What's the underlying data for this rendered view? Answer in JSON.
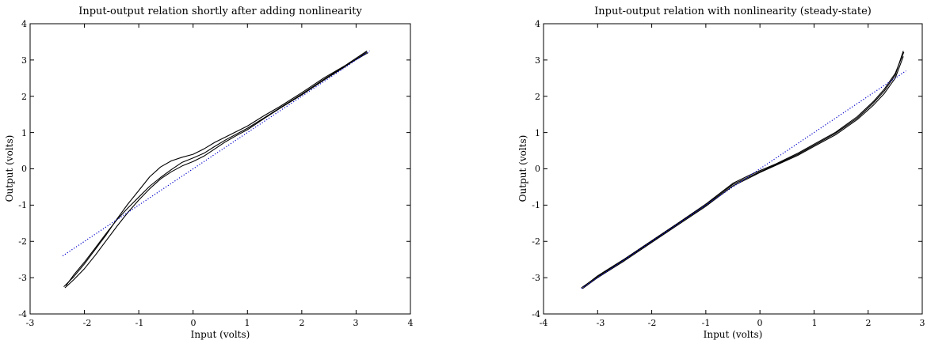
{
  "chart_data": [
    {
      "type": "line",
      "title": "Input-output relation shortly after adding nonlinearity",
      "xlabel": "Input (volts)",
      "ylabel": "Output (volts)",
      "xlim": [
        -3,
        4
      ],
      "ylim": [
        -4,
        4
      ],
      "xticks": [
        "-3",
        "-2",
        "-1",
        "0",
        "1",
        "2",
        "3",
        "4"
      ],
      "yticks": [
        "-4",
        "-3",
        "-2",
        "-1",
        "0",
        "1",
        "2",
        "3",
        "4"
      ],
      "grid": false,
      "series": [
        {
          "style": "solid",
          "color": "#000000",
          "x": [
            -2.38,
            -2.2,
            -2.0,
            -1.8,
            -1.6,
            -1.4,
            -1.2,
            -1.0,
            -0.8,
            -0.6,
            -0.4,
            -0.2,
            0.0,
            0.2,
            0.4,
            0.6,
            0.8,
            1.0,
            1.3,
            1.6,
            2.0,
            2.4,
            2.8,
            3.2
          ],
          "y": [
            -3.25,
            -2.98,
            -2.62,
            -2.22,
            -1.82,
            -1.38,
            -0.97,
            -0.6,
            -0.22,
            0.05,
            0.22,
            0.32,
            0.4,
            0.55,
            0.73,
            0.88,
            1.03,
            1.18,
            1.46,
            1.72,
            2.1,
            2.5,
            2.85,
            3.25
          ]
        },
        {
          "style": "solid",
          "color": "#000000",
          "x": [
            -2.36,
            -2.2,
            -2.0,
            -1.8,
            -1.6,
            -1.4,
            -1.2,
            -1.0,
            -0.8,
            -0.6,
            -0.4,
            -0.2,
            0.0,
            0.2,
            0.4,
            0.6,
            0.8,
            1.0,
            1.3,
            1.6,
            2.0,
            2.4,
            2.8,
            3.2
          ],
          "y": [
            -3.28,
            -3.06,
            -2.75,
            -2.38,
            -1.98,
            -1.58,
            -1.2,
            -0.86,
            -0.55,
            -0.28,
            -0.08,
            0.08,
            0.2,
            0.35,
            0.55,
            0.75,
            0.92,
            1.08,
            1.38,
            1.67,
            2.04,
            2.44,
            2.82,
            3.22
          ]
        },
        {
          "style": "solid",
          "color": "#000000",
          "x": [
            -2.34,
            -2.2,
            -2.0,
            -1.8,
            -1.6,
            -1.4,
            -1.2,
            -1.0,
            -0.8,
            -0.6,
            -0.4,
            -0.2,
            0.0,
            0.2,
            0.4,
            0.6,
            0.8,
            1.0,
            1.3,
            1.6,
            2.0,
            2.4,
            2.8,
            3.22
          ],
          "y": [
            -3.22,
            -2.93,
            -2.57,
            -2.18,
            -1.78,
            -1.4,
            -1.08,
            -0.78,
            -0.48,
            -0.24,
            -0.02,
            0.18,
            0.3,
            0.43,
            0.62,
            0.8,
            0.96,
            1.12,
            1.4,
            1.68,
            2.06,
            2.46,
            2.84,
            3.2
          ]
        },
        {
          "style": "dotted",
          "color": "#0000cc",
          "x": [
            -2.4,
            3.25
          ],
          "y": [
            -2.4,
            3.25
          ]
        }
      ]
    },
    {
      "type": "line",
      "title": "Input-output relation with nonlinearity (steady-state)",
      "xlabel": "Input (volts)",
      "ylabel": "Output (volts)",
      "xlim": [
        -4,
        3
      ],
      "ylim": [
        -4,
        4
      ],
      "xticks": [
        "-4",
        "-3",
        "-2",
        "-1",
        "0",
        "1",
        "2",
        "3"
      ],
      "yticks": [
        "-4",
        "-3",
        "-2",
        "-1",
        "0",
        "1",
        "2",
        "3",
        "4"
      ],
      "grid": false,
      "series": [
        {
          "style": "solid",
          "color": "#000000",
          "x": [
            -3.3,
            -3.0,
            -2.5,
            -2.0,
            -1.5,
            -1.0,
            -0.5,
            -0.2,
            0.0,
            0.3,
            0.7,
            1.0,
            1.4,
            1.8,
            2.1,
            2.3,
            2.5,
            2.65
          ],
          "y": [
            -3.28,
            -2.97,
            -2.5,
            -2.0,
            -1.5,
            -1.0,
            -0.43,
            -0.22,
            -0.08,
            0.12,
            0.4,
            0.65,
            0.98,
            1.4,
            1.82,
            2.15,
            2.58,
            3.25
          ]
        },
        {
          "style": "solid",
          "color": "#000000",
          "x": [
            -3.28,
            -3.0,
            -2.5,
            -2.0,
            -1.5,
            -1.0,
            -0.5,
            -0.2,
            0.0,
            0.3,
            0.7,
            1.0,
            1.4,
            1.8,
            2.1,
            2.3,
            2.5,
            2.65
          ],
          "y": [
            -3.3,
            -3.0,
            -2.53,
            -2.03,
            -1.53,
            -1.03,
            -0.47,
            -0.25,
            -0.1,
            0.1,
            0.37,
            0.62,
            0.94,
            1.36,
            1.76,
            2.08,
            2.5,
            3.1
          ]
        },
        {
          "style": "solid",
          "color": "#000000",
          "x": [
            -3.26,
            -3.0,
            -2.5,
            -2.0,
            -1.5,
            -1.0,
            -0.5,
            -0.2,
            0.0,
            0.3,
            0.7,
            1.0,
            1.4,
            1.8,
            2.1,
            2.3,
            2.5,
            2.66
          ],
          "y": [
            -3.25,
            -2.95,
            -2.48,
            -1.98,
            -1.48,
            -0.97,
            -0.4,
            -0.18,
            -0.05,
            0.14,
            0.43,
            0.68,
            1.01,
            1.44,
            1.86,
            2.2,
            2.63,
            3.22
          ]
        },
        {
          "style": "dotted",
          "color": "#0000cc",
          "x": [
            -3.3,
            2.7
          ],
          "y": [
            -3.3,
            2.7
          ]
        }
      ]
    }
  ]
}
